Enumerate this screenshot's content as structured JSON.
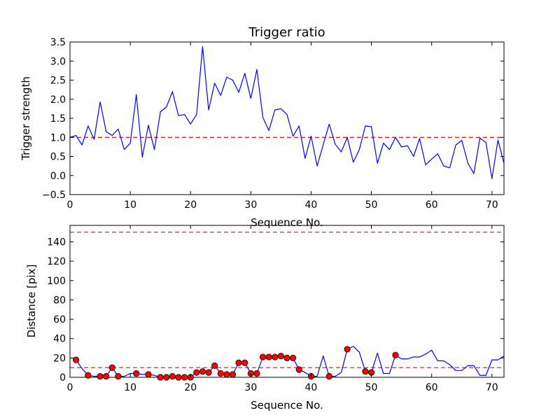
{
  "chart_data": [
    {
      "type": "line",
      "title": "Trigger ratio",
      "xlabel": "Sequence No.",
      "ylabel": "Trigger strength",
      "xlim": [
        0,
        72
      ],
      "ylim": [
        -0.5,
        3.5
      ],
      "xticks": [
        0,
        10,
        20,
        30,
        40,
        50,
        60,
        70
      ],
      "yticks": [
        -0.5,
        0.0,
        0.5,
        1.0,
        1.5,
        2.0,
        2.5,
        3.0,
        3.5
      ],
      "ytick_labels": [
        "−0.5",
        "0.0",
        "0.5",
        "1.0",
        "1.5",
        "2.0",
        "2.5",
        "3.0",
        "3.5"
      ],
      "threshold": 1.0,
      "colors": {
        "line": "#0000ff",
        "threshold": "#ff0000"
      },
      "series": [
        {
          "name": "trigger strength",
          "x": [
            0,
            1,
            2,
            3,
            4,
            5,
            6,
            7,
            8,
            9,
            10,
            11,
            12,
            13,
            14,
            15,
            16,
            17,
            18,
            19,
            20,
            21,
            22,
            23,
            24,
            25,
            26,
            27,
            28,
            29,
            30,
            31,
            32,
            33,
            34,
            35,
            36,
            37,
            38,
            39,
            40,
            41,
            42,
            43,
            44,
            45,
            46,
            47,
            48,
            49,
            50,
            51,
            52,
            53,
            54,
            55,
            56,
            57,
            58,
            59,
            60,
            61,
            62,
            63,
            64,
            65,
            66,
            67,
            68,
            69,
            70,
            71,
            72
          ],
          "values": [
            1.0,
            1.05,
            0.8,
            1.3,
            0.95,
            1.93,
            1.15,
            1.05,
            1.22,
            0.68,
            0.85,
            2.12,
            0.48,
            1.32,
            0.68,
            1.67,
            1.8,
            2.2,
            1.57,
            1.6,
            1.35,
            1.6,
            3.38,
            1.72,
            2.42,
            2.1,
            2.58,
            2.5,
            2.18,
            2.68,
            2.02,
            2.78,
            1.52,
            1.18,
            1.72,
            1.75,
            1.6,
            1.03,
            1.3,
            0.45,
            1.03,
            0.25,
            0.8,
            1.35,
            0.82,
            0.62,
            1.0,
            0.35,
            0.68,
            1.3,
            1.28,
            0.32,
            0.85,
            0.68,
            1.0,
            0.75,
            0.78,
            0.5,
            0.97,
            0.28,
            0.43,
            0.57,
            0.25,
            0.2,
            0.8,
            0.92,
            0.33,
            0.05,
            0.98,
            0.87,
            -0.08,
            0.93,
            0.32
          ]
        }
      ]
    },
    {
      "type": "line",
      "title": "",
      "xlabel": "Sequence No.",
      "ylabel": "Distance [pix]",
      "xlim": [
        0,
        72
      ],
      "ylim": [
        0,
        157
      ],
      "xticks": [
        0,
        10,
        20,
        30,
        40,
        50,
        60,
        70
      ],
      "yticks": [
        0,
        20,
        40,
        60,
        80,
        100,
        120,
        140
      ],
      "thresholds": [
        10,
        150
      ],
      "colors": {
        "line": "#0000ff",
        "threshold": "#ff0000",
        "marker": "#ff0000"
      },
      "series": [
        {
          "name": "distance",
          "x": [
            1,
            2,
            3,
            4,
            5,
            6,
            7,
            8,
            9,
            10,
            11,
            12,
            13,
            14,
            15,
            16,
            17,
            18,
            19,
            20,
            21,
            22,
            23,
            24,
            25,
            26,
            27,
            28,
            29,
            30,
            31,
            32,
            33,
            34,
            35,
            36,
            37,
            38,
            39,
            40,
            41,
            42,
            43,
            44,
            45,
            46,
            47,
            48,
            49,
            50,
            51,
            52,
            53,
            54,
            55,
            56,
            57,
            58,
            59,
            60,
            61,
            62,
            63,
            64,
            65,
            66,
            67,
            68,
            69,
            70,
            71,
            72
          ],
          "values": [
            18,
            9,
            2,
            1,
            1,
            1,
            10,
            1,
            1,
            4,
            4,
            3,
            3,
            2,
            0,
            0,
            1,
            0,
            0,
            0,
            5,
            6,
            5,
            12,
            4,
            3,
            3,
            15,
            15,
            4,
            4,
            21,
            21,
            21,
            22,
            20,
            20,
            8,
            5,
            1,
            1,
            22,
            1,
            1,
            5,
            29,
            32,
            26,
            6,
            5,
            25,
            4,
            4,
            23,
            19,
            19,
            21,
            21,
            24,
            28,
            17,
            17,
            13,
            7,
            7,
            12,
            12,
            2,
            2,
            18,
            18,
            22
          ]
        },
        {
          "name": "triggered",
          "x": [
            1,
            3,
            5,
            6,
            7,
            8,
            11,
            13,
            15,
            16,
            17,
            18,
            19,
            20,
            21,
            22,
            23,
            24,
            25,
            26,
            27,
            28,
            29,
            30,
            31,
            32,
            33,
            34,
            35,
            36,
            37,
            38,
            40,
            43,
            46,
            49,
            50,
            54
          ],
          "values": [
            18,
            2,
            1,
            1,
            10,
            1,
            4,
            3,
            0,
            0,
            1,
            0,
            0,
            0,
            5,
            6,
            5,
            12,
            4,
            3,
            3,
            15,
            15,
            4,
            4,
            21,
            21,
            21,
            22,
            20,
            20,
            8,
            1,
            1,
            29,
            6,
            5,
            23
          ]
        }
      ]
    }
  ]
}
